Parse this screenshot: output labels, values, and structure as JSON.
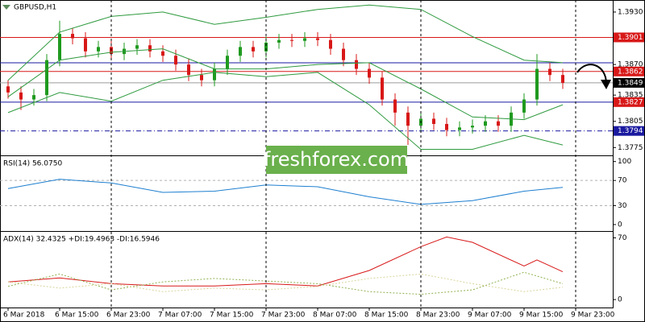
{
  "chart_data": [
    {
      "type": "candlestick",
      "title": "GBPUSD,H1",
      "watermark": "freshforex.com",
      "open": [
        1.3845,
        1.3838,
        1.383,
        1.3835,
        1.3875,
        1.3905,
        1.39,
        1.3885,
        1.389,
        1.3882,
        1.3888,
        1.3892,
        1.3885,
        1.388,
        1.387,
        1.3858,
        1.3852,
        1.3865,
        1.388,
        1.389,
        1.3885,
        1.3895,
        1.3898,
        1.3897,
        1.39,
        1.3898,
        1.3888,
        1.3875,
        1.3865,
        1.3855,
        1.383,
        1.3815,
        1.38,
        1.3808,
        1.3802,
        1.3795,
        1.3798,
        1.38,
        1.3805,
        1.38,
        1.3815,
        1.383,
        1.3865,
        1.3858
      ],
      "high": [
        1.3852,
        1.3845,
        1.3842,
        1.3882,
        1.392,
        1.3912,
        1.3907,
        1.3897,
        1.3897,
        1.3895,
        1.3899,
        1.3899,
        1.3892,
        1.3887,
        1.3877,
        1.3865,
        1.3872,
        1.3887,
        1.3897,
        1.3897,
        1.3902,
        1.3905,
        1.3905,
        1.3907,
        1.3907,
        1.3905,
        1.3895,
        1.3882,
        1.3872,
        1.3862,
        1.3837,
        1.3822,
        1.3815,
        1.3815,
        1.3809,
        1.3805,
        1.3807,
        1.3812,
        1.3812,
        1.3822,
        1.3837,
        1.3882,
        1.3872,
        1.3865
      ],
      "low": [
        1.3831,
        1.3818,
        1.3823,
        1.3828,
        1.3868,
        1.3893,
        1.3878,
        1.3878,
        1.3875,
        1.3875,
        1.3881,
        1.3878,
        1.3873,
        1.3863,
        1.3851,
        1.3845,
        1.3845,
        1.3858,
        1.3873,
        1.3878,
        1.3878,
        1.3888,
        1.389,
        1.389,
        1.3891,
        1.3881,
        1.3868,
        1.3858,
        1.3848,
        1.3823,
        1.38,
        1.3778,
        1.3793,
        1.3795,
        1.3788,
        1.3788,
        1.3791,
        1.3793,
        1.3793,
        1.3793,
        1.3808,
        1.3823,
        1.3851,
        1.3842
      ],
      "close": [
        1.3838,
        1.383,
        1.3835,
        1.3875,
        1.3905,
        1.39,
        1.3885,
        1.389,
        1.3882,
        1.3888,
        1.3892,
        1.3885,
        1.388,
        1.387,
        1.3858,
        1.3852,
        1.3865,
        1.388,
        1.389,
        1.3885,
        1.3895,
        1.3898,
        1.3897,
        1.39,
        1.3898,
        1.3888,
        1.3875,
        1.3865,
        1.3855,
        1.383,
        1.3815,
        1.38,
        1.3808,
        1.3802,
        1.3795,
        1.3798,
        1.38,
        1.3805,
        1.38,
        1.3815,
        1.383,
        1.3865,
        1.3858,
        1.3849
      ],
      "up_color": "#1f9a1f",
      "down_color": "#d81818",
      "series": [
        {
          "color": "#2e9a3e",
          "x": [
            0,
            4,
            8,
            12,
            16,
            20,
            24,
            28,
            32,
            36,
            40,
            43
          ],
          "values": [
            1.3852,
            1.3907,
            1.3925,
            1.393,
            1.3916,
            1.3924,
            1.3933,
            1.3938,
            1.3933,
            1.3902,
            1.3875,
            1.3872
          ]
        },
        {
          "color": "#2e9a3e",
          "x": [
            0,
            4,
            8,
            12,
            16,
            20,
            24,
            28,
            32,
            36,
            40,
            43
          ],
          "values": [
            1.3833,
            1.3875,
            1.3884,
            1.3888,
            1.3865,
            1.3865,
            1.387,
            1.3872,
            1.3842,
            1.381,
            1.3807,
            1.3824
          ]
        },
        {
          "color": "#2e9a3e",
          "x": [
            0,
            4,
            8,
            12,
            16,
            20,
            24,
            28,
            32,
            36,
            40,
            43
          ],
          "values": [
            1.3815,
            1.3838,
            1.3828,
            1.3852,
            1.3861,
            1.3856,
            1.3861,
            1.3824,
            1.3773,
            1.3773,
            1.3789,
            1.3778
          ]
        }
      ],
      "levels": [
        {
          "value": 1.3901,
          "label": "1.3901",
          "color": "#d81818",
          "line_color": "#d81818",
          "style": "solid"
        },
        {
          "value": 1.3872,
          "line_color": "#1a1aa0",
          "style": "solid"
        },
        {
          "value": 1.3862,
          "label": "1.3862",
          "color": "#d81818",
          "line_color": "#d81818",
          "style": "solid"
        },
        {
          "value": 1.3849,
          "label": "1.3849",
          "color": "#000000",
          "line_color": "#9a9a9a",
          "style": "solid"
        },
        {
          "value": 1.3827,
          "label": "1.3827",
          "color": "#d81818",
          "line_color": "#1a1aa0",
          "style": "solid"
        },
        {
          "value": 1.3794,
          "label": "1.3794",
          "color": "#1a1aa0",
          "line_color": "#1a1aa0",
          "style": "dashdot"
        }
      ],
      "ylim": [
        1.3767,
        1.3941
      ],
      "yticks": [
        {
          "value": 1.393,
          "label": "1.3930"
        },
        {
          "value": 1.387,
          "label": "1.3870"
        },
        {
          "value": 1.3835,
          "label": "1.3835"
        },
        {
          "value": 1.3805,
          "label": "1.3805"
        },
        {
          "value": 1.3775,
          "label": "1.3775"
        }
      ]
    },
    {
      "type": "line",
      "title": "RSI(14) 56.0750",
      "series": [
        {
          "color": "#1e7fd0",
          "x": [
            0,
            4,
            8,
            12,
            16,
            20,
            24,
            28,
            32,
            36,
            40,
            43
          ],
          "values": [
            57,
            72,
            66,
            51,
            53,
            63,
            60,
            44,
            32,
            38,
            53,
            59
          ]
        }
      ],
      "levels": [
        70,
        30
      ],
      "ylim": [
        -9,
        106
      ],
      "yticks": [
        100,
        70,
        30,
        0
      ]
    },
    {
      "type": "line",
      "title": "ADX(14) 32.4325 +DI:19.4963 -DI:16.5946",
      "series": [
        {
          "color": "#d81818",
          "style": "solid",
          "x": [
            0,
            4,
            8,
            12,
            16,
            20,
            24,
            28,
            32,
            34,
            36,
            40,
            41,
            43
          ],
          "values": [
            20,
            24.5,
            18,
            15.5,
            15.5,
            18,
            15.5,
            33,
            60,
            71,
            65,
            38,
            45,
            31.5
          ]
        },
        {
          "color": "#8fb04f",
          "style": "dotted",
          "x": [
            0,
            4,
            8,
            12,
            16,
            20,
            24,
            28,
            32,
            36,
            40,
            43
          ],
          "values": [
            15,
            29,
            11,
            20,
            24,
            21,
            18,
            9,
            6,
            11,
            31,
            18
          ]
        },
        {
          "color": "#d8d49a",
          "style": "dotted",
          "x": [
            0,
            4,
            8,
            12,
            16,
            20,
            24,
            28,
            32,
            36,
            40,
            43
          ],
          "values": [
            20,
            13,
            18,
            9,
            13,
            11,
            15,
            24,
            29,
            18,
            9,
            14
          ]
        }
      ],
      "ylim": [
        -9,
        75
      ],
      "yticks": [
        70,
        0
      ],
      "xlim": [
        -0.625,
        46.875
      ],
      "xticks": [
        {
          "value": 0,
          "label": "6 Mar 2018"
        },
        {
          "value": 4,
          "label": "6 Mar 15:00"
        },
        {
          "value": 8,
          "label": "6 Mar 23:00"
        },
        {
          "value": 12,
          "label": "7 Mar 07:00"
        },
        {
          "value": 16,
          "label": "7 Mar 15:00"
        },
        {
          "value": 20,
          "label": "7 Mar 23:00"
        },
        {
          "value": 24,
          "label": "8 Mar 07:00"
        },
        {
          "value": 28,
          "label": "8 Mar 15:00"
        },
        {
          "value": 32,
          "label": "8 Mar 23:00"
        },
        {
          "value": 36,
          "label": "9 Mar 07:00"
        },
        {
          "value": 40,
          "label": "9 Mar 15:00"
        },
        {
          "value": 44,
          "label": "9 Mar 23:00"
        }
      ],
      "separators": [
        8,
        20,
        32,
        44
      ]
    }
  ]
}
